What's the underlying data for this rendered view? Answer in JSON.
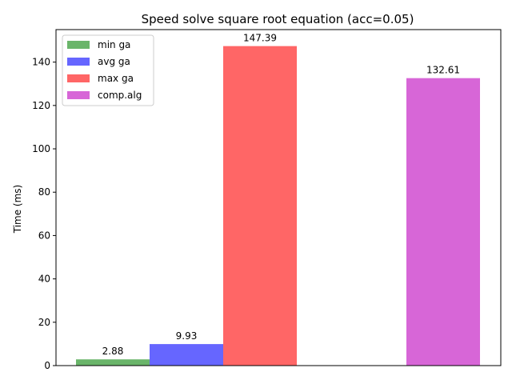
{
  "chart_data": {
    "type": "bar",
    "title": "Speed solve square root equation (acc=0.05)",
    "xlabel": "",
    "ylabel": "Time (ms)",
    "ylim": [
      0,
      155
    ],
    "yticks": [
      0,
      20,
      40,
      60,
      80,
      100,
      120,
      140
    ],
    "grid": false,
    "legend_position": "top-left",
    "series": [
      {
        "name": "min ga",
        "value": 2.88,
        "label": "2.88",
        "color": "#6ab56a"
      },
      {
        "name": "avg ga",
        "value": 9.93,
        "label": "9.93",
        "color": "#6666ff"
      },
      {
        "name": "max ga",
        "value": 147.39,
        "label": "147.39",
        "color": "#ff6666"
      },
      {
        "name": "comp.alg",
        "value": 132.61,
        "label": "132.61",
        "color": "#d766d7"
      }
    ]
  }
}
